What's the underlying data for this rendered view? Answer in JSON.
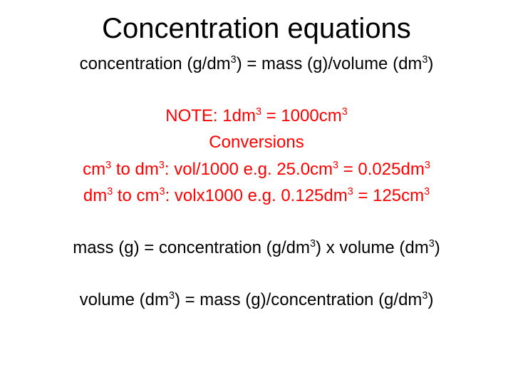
{
  "colors": {
    "background": "#ffffff",
    "text_black": "#000000",
    "text_red": "#ff0000"
  },
  "title": "Concentration equations",
  "lines": [
    {
      "html": "concentration (g/dm<sup>3</sup>) = mass (g)/volume (dm<sup>3</sup>)",
      "color": "black"
    },
    {
      "html": "",
      "color": "spacer"
    },
    {
      "html": "NOTE: 1dm<sup>3</sup> = 1000cm<sup>3</sup>",
      "color": "red"
    },
    {
      "html": "Conversions",
      "color": "red"
    },
    {
      "html": "cm<sup>3</sup> to dm<sup>3</sup>: vol/1000 e.g. 25.0cm<sup>3</sup> = 0.025dm<sup>3</sup>",
      "color": "red"
    },
    {
      "html": "dm<sup>3</sup> to cm<sup>3</sup>: volx1000 e.g. 0.125dm<sup>3</sup> = 125cm<sup>3</sup>",
      "color": "red"
    },
    {
      "html": "",
      "color": "spacer"
    },
    {
      "html": "mass (g) = concentration (g/dm<sup>3</sup>) x volume (dm<sup>3</sup>)",
      "color": "black"
    },
    {
      "html": "",
      "color": "spacer"
    },
    {
      "html": "volume (dm<sup>3</sup>) = mass (g)/concentration (g/dm<sup>3</sup>)",
      "color": "black"
    }
  ]
}
